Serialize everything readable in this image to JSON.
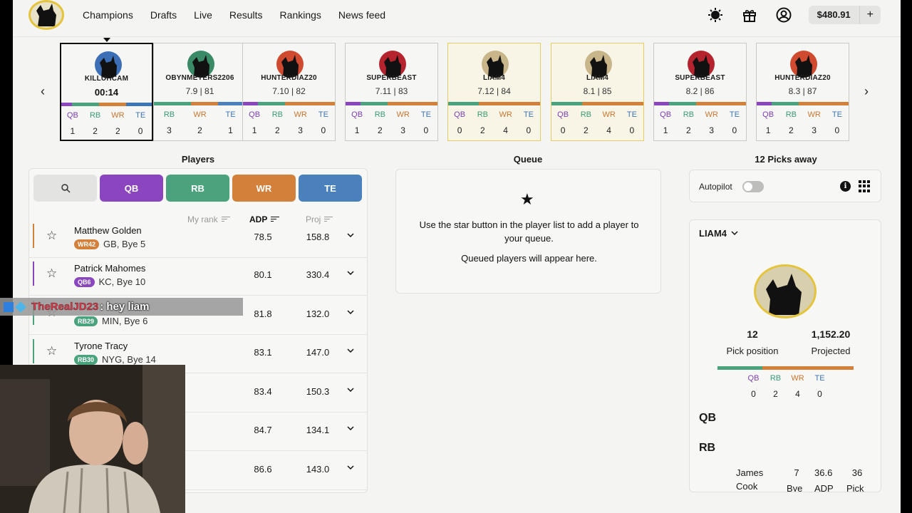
{
  "nav": {
    "items": [
      "Champions",
      "Drafts",
      "Live",
      "Results",
      "Rankings",
      "News feed"
    ]
  },
  "header": {
    "balance": "$480.91",
    "add_funds": "+"
  },
  "board": {
    "cards": [
      {
        "name": "KILLUHCAM",
        "sub": "00:14",
        "counts": [
          "1",
          "2",
          "2",
          "0"
        ],
        "style": "current"
      },
      {
        "name": "OBYNMEYERS2206",
        "sub": "7.9 | 81",
        "counts": [
          "3",
          "2",
          "1"
        ],
        "style": "normal"
      },
      {
        "name": "HUNTERDIAZ20",
        "sub": "7.10 | 82",
        "counts": [
          "1",
          "2",
          "3",
          "0"
        ],
        "style": "normal"
      },
      {
        "name": "SUPERBEAST",
        "sub": "7.11 | 83",
        "counts": [
          "1",
          "2",
          "3",
          "0"
        ],
        "style": "normal"
      },
      {
        "name": "LIAM4",
        "sub": "7.12 | 84",
        "counts": [
          "0",
          "2",
          "4",
          "0"
        ],
        "style": "mine"
      },
      {
        "name": "LIAM4",
        "sub": "8.1 | 85",
        "counts": [
          "0",
          "2",
          "4",
          "0"
        ],
        "style": "mine"
      },
      {
        "name": "SUPERBEAST",
        "sub": "8.2 | 86",
        "counts": [
          "1",
          "2",
          "3",
          "0"
        ],
        "style": "normal"
      },
      {
        "name": "HUNTERDIAZ20",
        "sub": "8.3 | 87",
        "counts": [
          "1",
          "2",
          "3",
          "0"
        ],
        "style": "normal"
      }
    ],
    "positions": [
      "QB",
      "RB",
      "WR",
      "TE"
    ],
    "positions_partial": [
      "RB",
      "WR",
      "TE"
    ]
  },
  "players": {
    "title": "Players",
    "filters": [
      "QB",
      "RB",
      "WR",
      "TE"
    ],
    "col_myrank": "My rank",
    "col_adp": "ADP",
    "col_proj": "Proj",
    "rows": [
      {
        "name": "Matthew Golden",
        "badge": "WR42",
        "meta": "GB, Bye 5",
        "adp": "78.5",
        "proj": "158.8",
        "pos": "wr"
      },
      {
        "name": "Patrick Mahomes",
        "badge": "QB6",
        "meta": "KC, Bye 10",
        "adp": "80.1",
        "proj": "330.4",
        "pos": "qb"
      },
      {
        "name": "",
        "badge": "RB29",
        "meta": "MIN, Bye 6",
        "adp": "81.8",
        "proj": "132.0",
        "pos": "rb"
      },
      {
        "name": "Tyrone Tracy",
        "badge": "RB30",
        "meta": "NYG, Bye 14",
        "adp": "83.1",
        "proj": "147.0",
        "pos": "rb"
      },
      {
        "name": "",
        "badge": "",
        "meta": "",
        "adp": "83.4",
        "proj": "150.3",
        "pos": ""
      },
      {
        "name": "",
        "badge": "",
        "meta": "",
        "adp": "84.7",
        "proj": "134.1",
        "pos": ""
      },
      {
        "name": "",
        "badge": "",
        "meta": "",
        "adp": "86.6",
        "proj": "143.0",
        "pos": ""
      }
    ]
  },
  "queue": {
    "title": "Queue",
    "line1": "Use the star button in the player list to add a player to your queue.",
    "line2": "Queued players will appear here."
  },
  "picks_away": "12 Picks away",
  "autopilot": {
    "label": "Autopilot",
    "enabled": false
  },
  "team": {
    "name": "LIAM4",
    "pick_position": "12",
    "pick_position_label": "Pick position",
    "projected": "1,152.20",
    "projected_label": "Projected",
    "positions": [
      "QB",
      "RB",
      "WR",
      "TE"
    ],
    "counts": [
      "0",
      "2",
      "4",
      "0"
    ],
    "roster_qb": "QB",
    "roster_rb": "RB",
    "roster_player": {
      "first": "James",
      "last": "Cook",
      "bye": "7",
      "bye_label": "Bye",
      "adp": "36.6",
      "adp_label": "ADP",
      "pick": "36",
      "pick_label": "Pick"
    }
  },
  "chat": {
    "user": "TheRealJD23",
    "message": ": hey liam"
  },
  "colors": {
    "qb": "#7b3fb0",
    "rb": "#3a9a73",
    "wr": "#c9762f",
    "te": "#3d76b5",
    "accent_gold": "#e5c43d"
  }
}
